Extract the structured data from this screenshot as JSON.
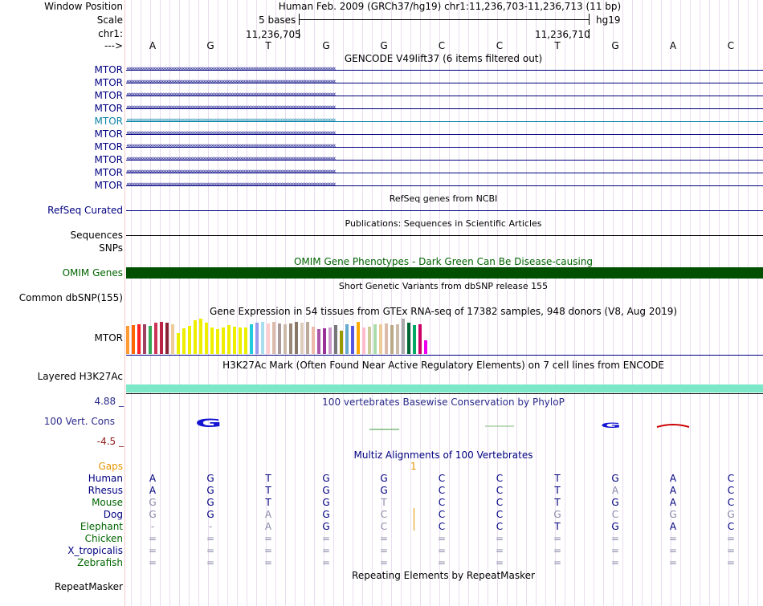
{
  "header": {
    "window_position_label": "Window Position",
    "scale_label": "Scale",
    "chrom_label": "chr1:",
    "strand_label": "--->",
    "title": "Human Feb. 2009 (GRCh37/hg19)   chr1:11,236,703-11,236,713 (11 bp)",
    "scale_text": "5 bases",
    "assembly": "hg19",
    "coord_left": "11,236,705",
    "coord_right": "11,236,710",
    "bases": [
      "A",
      "G",
      "T",
      "G",
      "G",
      "C",
      "C",
      "T",
      "G",
      "A",
      "C"
    ]
  },
  "gencode": {
    "title": "GENCODE V49lift37 (6 items filtered out)",
    "items": [
      {
        "label": "MTOR",
        "color": "#000080"
      },
      {
        "label": "MTOR",
        "color": "#000080"
      },
      {
        "label": "MTOR",
        "color": "#000080"
      },
      {
        "label": "MTOR",
        "color": "#000080"
      },
      {
        "label": "MTOR",
        "color": "#0c82a8"
      },
      {
        "label": "MTOR",
        "color": "#000080"
      },
      {
        "label": "MTOR",
        "color": "#000080"
      },
      {
        "label": "MTOR",
        "color": "#000080"
      },
      {
        "label": "MTOR",
        "color": "#000080"
      },
      {
        "label": "MTOR",
        "color": "#000080"
      }
    ]
  },
  "refseq": {
    "title": "RefSeq genes from NCBI",
    "label": "RefSeq Curated"
  },
  "publications": {
    "title": "Publications: Sequences in Scientific Articles",
    "label": "Sequences"
  },
  "snps": {
    "label": "SNPs"
  },
  "omim": {
    "title": "OMIM Gene Phenotypes - Dark Green Can Be Disease-causing",
    "label": "OMIM Genes",
    "color": "#005000"
  },
  "dbsnp": {
    "title": "Short Genetic Variants from dbSNP release 155",
    "label": "Common dbSNP(155)"
  },
  "gtex": {
    "title": "Gene Expression in 54 tissues from GTEx RNA-seq of 17382 samples, 948 donors (V8, Aug 2019)",
    "label": "MTOR",
    "bars": [
      {
        "c": "#ff9933",
        "v": 0.8
      },
      {
        "c": "#ff6600",
        "v": 0.82
      },
      {
        "c": "#ff2222",
        "v": 0.85
      },
      {
        "c": "#a04060",
        "v": 0.85
      },
      {
        "c": "#33aa55",
        "v": 0.8
      },
      {
        "c": "#cc3355",
        "v": 0.88
      },
      {
        "c": "#bb2244",
        "v": 0.9
      },
      {
        "c": "#882233",
        "v": 0.88
      },
      {
        "c": "#eecc99",
        "v": 0.85
      },
      {
        "c": "#eeee00",
        "v": 0.6
      },
      {
        "c": "#eeee00",
        "v": 0.72
      },
      {
        "c": "#eeee00",
        "v": 0.8
      },
      {
        "c": "#eeee00",
        "v": 0.95
      },
      {
        "c": "#eeee00",
        "v": 1.0
      },
      {
        "c": "#eeee00",
        "v": 0.88
      },
      {
        "c": "#eeee00",
        "v": 0.75
      },
      {
        "c": "#eeee00",
        "v": 0.7
      },
      {
        "c": "#eeee00",
        "v": 0.75
      },
      {
        "c": "#eeee00",
        "v": 0.82
      },
      {
        "c": "#eeee00",
        "v": 0.78
      },
      {
        "c": "#eeee00",
        "v": 0.74
      },
      {
        "c": "#eeee00",
        "v": 0.76
      },
      {
        "c": "#22ccdd",
        "v": 0.84
      },
      {
        "c": "#9999ee",
        "v": 0.88
      },
      {
        "c": "#aaddee",
        "v": 0.9
      },
      {
        "c": "#ffcccc",
        "v": 0.86
      },
      {
        "c": "#ddbbaa",
        "v": 0.9
      },
      {
        "c": "#aa9999",
        "v": 0.86
      },
      {
        "c": "#ccbbaa",
        "v": 0.84
      },
      {
        "c": "#998877",
        "v": 0.86
      },
      {
        "c": "#887766",
        "v": 0.9
      },
      {
        "c": "#ddccbb",
        "v": 0.88
      },
      {
        "c": "#bbaa99",
        "v": 0.9
      },
      {
        "c": "#eebbaa",
        "v": 0.78
      },
      {
        "c": "#aa55aa",
        "v": 0.7
      },
      {
        "c": "#993399",
        "v": 0.72
      },
      {
        "c": "#cc99cc",
        "v": 0.74
      },
      {
        "c": "#777777",
        "v": 0.82
      },
      {
        "c": "#999900",
        "v": 0.66
      },
      {
        "c": "#66aacc",
        "v": 0.84
      },
      {
        "c": "#5555dd",
        "v": 0.8
      },
      {
        "c": "#ffaa00",
        "v": 0.9
      },
      {
        "c": "#ffbbcc",
        "v": 0.75
      },
      {
        "c": "#cccc99",
        "v": 0.78
      },
      {
        "c": "#aaddaa",
        "v": 0.84
      },
      {
        "c": "#eecc99",
        "v": 0.85
      },
      {
        "c": "#ddbbaa",
        "v": 0.86
      },
      {
        "c": "#bbaa88",
        "v": 0.82
      },
      {
        "c": "#ccbbaa",
        "v": 0.84
      },
      {
        "c": "#aaaaaa",
        "v": 1.0
      },
      {
        "c": "#006633",
        "v": 0.88
      },
      {
        "c": "#00aa66",
        "v": 0.82
      },
      {
        "c": "#cc0066",
        "v": 0.84
      },
      {
        "c": "#ee00ee",
        "v": 0.38
      }
    ]
  },
  "h3k27ac": {
    "title": "H3K27Ac Mark (Often Found Near Active Regulatory Elements) on 7 cell lines from ENCODE",
    "label": "Layered H3K27Ac",
    "color": "#7de8c8"
  },
  "cons": {
    "title": "100 vertebrates Basewise Conservation by PhyloP",
    "label": "100 Vert. Cons",
    "max_label": "4.88 _",
    "min_label": "-4.5 _"
  },
  "multiz": {
    "title": "Multiz Alignments of 100 Vertebrates",
    "gaps_label": "Gaps",
    "gap_count": "1",
    "species": [
      {
        "name": "Human",
        "color": "#000080",
        "seq": [
          "A",
          "G",
          "T",
          "G",
          "G",
          "C",
          "C",
          "T",
          "G",
          "A",
          "C"
        ],
        "dim": []
      },
      {
        "name": "Rhesus",
        "color": "#000080",
        "seq": [
          "A",
          "G",
          "T",
          "G",
          "G",
          "C",
          "C",
          "T",
          "A",
          "A",
          "C"
        ],
        "dim": [
          8
        ]
      },
      {
        "name": "Mouse",
        "color": "#006400",
        "seq": [
          "G",
          "G",
          "T",
          "G",
          "T",
          "C",
          "C",
          "T",
          "G",
          "A",
          "C"
        ],
        "dim": [
          0,
          4
        ]
      },
      {
        "name": "Dog",
        "color": "#000080",
        "seq": [
          "G",
          "G",
          "A",
          "G",
          "C",
          "C",
          "C",
          "G",
          "C",
          "G",
          "G"
        ],
        "dim": [
          0,
          2,
          4,
          7,
          8,
          9,
          10
        ]
      },
      {
        "name": "Elephant",
        "color": "#006400",
        "seq": [
          "-",
          "-",
          "A",
          "G",
          "C",
          "C",
          "C",
          "T",
          "G",
          "A",
          "C"
        ],
        "dim": [
          0,
          1,
          2,
          4
        ]
      },
      {
        "name": "Chicken",
        "color": "#006400",
        "seq": [
          "=",
          "=",
          "=",
          "=",
          "=",
          "=",
          "=",
          "=",
          "=",
          "=",
          "="
        ],
        "dim": [
          0,
          1,
          2,
          3,
          4,
          5,
          6,
          7,
          8,
          9,
          10
        ]
      },
      {
        "name": "X_tropicalis",
        "color": "#000080",
        "seq": [
          "=",
          "=",
          "=",
          "=",
          "=",
          "=",
          "=",
          "=",
          "=",
          "=",
          "="
        ],
        "dim": [
          0,
          1,
          2,
          3,
          4,
          5,
          6,
          7,
          8,
          9,
          10
        ]
      },
      {
        "name": "Zebrafish",
        "color": "#006400",
        "seq": [
          "=",
          "=",
          "=",
          "=",
          "=",
          "=",
          "=",
          "=",
          "=",
          "=",
          "="
        ],
        "dim": [
          0,
          1,
          2,
          3,
          4,
          5,
          6,
          7,
          8,
          9,
          10
        ]
      }
    ]
  },
  "repeatmasker": {
    "title": "Repeating Elements by RepeatMasker",
    "label": "RepeatMasker"
  }
}
